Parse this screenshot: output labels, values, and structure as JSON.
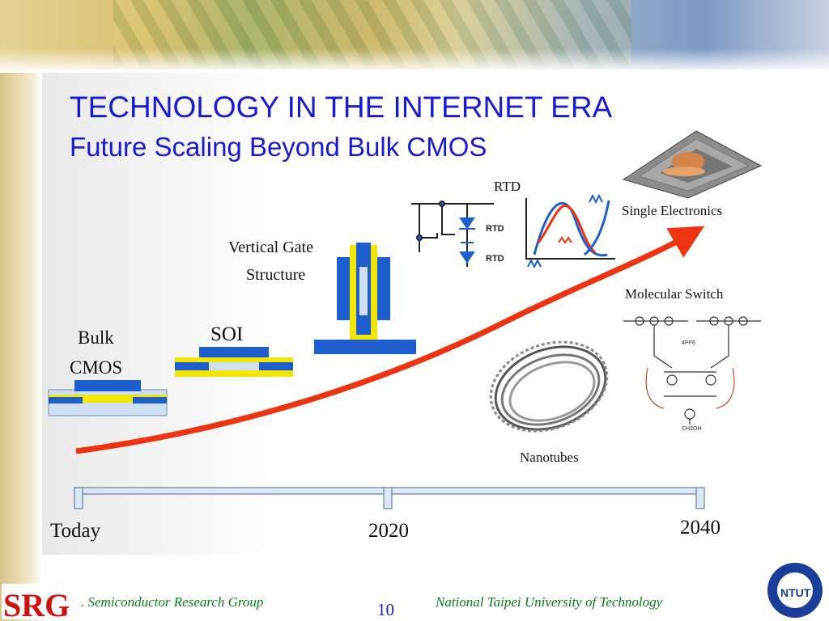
{
  "slide": {
    "title": "TECHNOLOGY IN THE INTERNET ERA",
    "subtitle": "Future Scaling Beyond Bulk CMOS"
  },
  "devices": {
    "bulk_cmos_line1": "Bulk",
    "bulk_cmos_line2": "CMOS",
    "soi": "SOI",
    "vertical_gate_line1": "Vertical Gate",
    "vertical_gate_line2": "Structure",
    "rtd_top": "RTD",
    "rtd_inner_1": "RTD",
    "rtd_inner_2": "RTD",
    "single_electronics": "Single Electronics",
    "molecular_switch": "Molecular Switch",
    "nanotubes": "Nanotubes",
    "molecule_label_1": "4PF6",
    "molecule_label_2": "CH2OH"
  },
  "timeline": {
    "start": "Today",
    "mid": "2020",
    "end": "2040"
  },
  "footer": {
    "logo_left": "SRG",
    "group": ". Semiconductor Research Group",
    "page_number": "10",
    "university": "National Taipei University of  Technology",
    "logo_right": "NTUT"
  },
  "colors": {
    "title": "#1a1ad4",
    "arrow": "#ee3311",
    "device_blue": "#1e5fd0",
    "device_yellow": "#f2e600",
    "footer_text": "#0b7a1a"
  }
}
